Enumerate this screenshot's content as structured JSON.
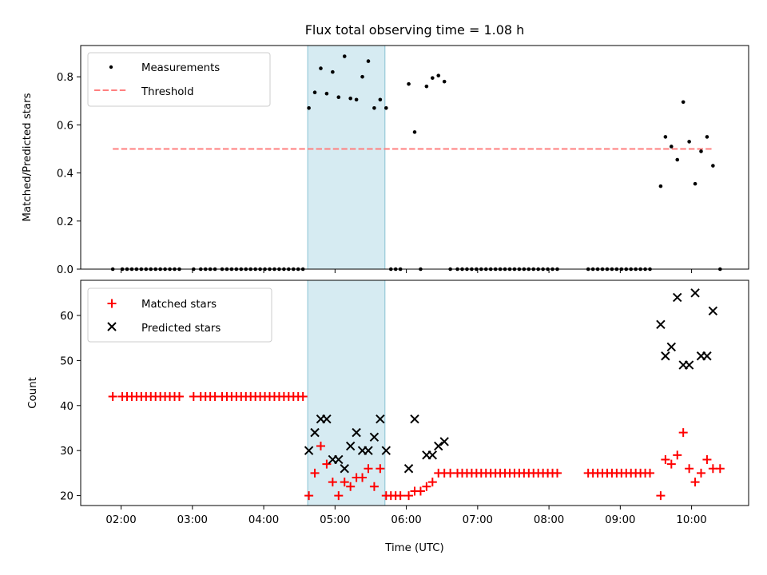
{
  "chart_data": [
    {
      "type": "scatter",
      "title": "Flux total observing time = 1.08 h",
      "ylabel": "Matched/Predicted stars",
      "xlabel": "",
      "xlim": [
        "01:26",
        "10:48"
      ],
      "ylim": [
        0,
        0.93
      ],
      "x_ticks": [
        "02:00",
        "03:00",
        "04:00",
        "05:00",
        "06:00",
        "07:00",
        "08:00",
        "09:00",
        "10:00"
      ],
      "y_ticks": [
        "0.0",
        "0.2",
        "0.4",
        "0.6",
        "0.8"
      ],
      "x_tick_labels_visible": false,
      "highlight_span": [
        "04:37",
        "05:42"
      ],
      "legend": {
        "placement": "upper-left",
        "entries": [
          "Measurements",
          "Threshold"
        ]
      },
      "series": [
        {
          "name": "Measurements",
          "marker": "dot",
          "color": "#000000",
          "points": [
            [
              "01:53",
              0
            ],
            [
              "02:01",
              0
            ],
            [
              "02:05",
              0
            ],
            [
              "02:09",
              0
            ],
            [
              "02:13",
              0
            ],
            [
              "02:17",
              0
            ],
            [
              "02:21",
              0
            ],
            [
              "02:25",
              0
            ],
            [
              "02:29",
              0
            ],
            [
              "02:33",
              0
            ],
            [
              "02:37",
              0
            ],
            [
              "02:41",
              0
            ],
            [
              "02:45",
              0
            ],
            [
              "02:49",
              0
            ],
            [
              "03:01",
              0
            ],
            [
              "03:07",
              0
            ],
            [
              "03:11",
              0
            ],
            [
              "03:15",
              0
            ],
            [
              "03:19",
              0
            ],
            [
              "03:25",
              0
            ],
            [
              "03:29",
              0
            ],
            [
              "03:33",
              0
            ],
            [
              "03:37",
              0
            ],
            [
              "03:41",
              0
            ],
            [
              "03:45",
              0
            ],
            [
              "03:49",
              0
            ],
            [
              "03:53",
              0
            ],
            [
              "03:57",
              0
            ],
            [
              "04:01",
              0
            ],
            [
              "04:05",
              0
            ],
            [
              "04:09",
              0
            ],
            [
              "04:13",
              0
            ],
            [
              "04:17",
              0
            ],
            [
              "04:21",
              0
            ],
            [
              "04:25",
              0
            ],
            [
              "04:29",
              0
            ],
            [
              "04:33",
              0
            ],
            [
              "04:38",
              0.67
            ],
            [
              "04:43",
              0.735
            ],
            [
              "04:48",
              0.835
            ],
            [
              "04:53",
              0.73
            ],
            [
              "04:58",
              0.82
            ],
            [
              "05:03",
              0.715
            ],
            [
              "05:08",
              0.885
            ],
            [
              "05:13",
              0.71
            ],
            [
              "05:18",
              0.705
            ],
            [
              "05:23",
              0.8
            ],
            [
              "05:28",
              0.865
            ],
            [
              "05:33",
              0.67
            ],
            [
              "05:38",
              0.705
            ],
            [
              "05:43",
              0.67
            ],
            [
              "05:47",
              0
            ],
            [
              "05:51",
              0
            ],
            [
              "05:55",
              0
            ],
            [
              "06:02",
              0.77
            ],
            [
              "06:07",
              0.57
            ],
            [
              "06:12",
              0
            ],
            [
              "06:17",
              0.76
            ],
            [
              "06:22",
              0.795
            ],
            [
              "06:27",
              0.805
            ],
            [
              "06:32",
              0.78
            ],
            [
              "06:37",
              0
            ],
            [
              "06:43",
              0
            ],
            [
              "06:47",
              0
            ],
            [
              "06:51",
              0
            ],
            [
              "06:55",
              0
            ],
            [
              "06:59",
              0
            ],
            [
              "07:03",
              0
            ],
            [
              "07:07",
              0
            ],
            [
              "07:11",
              0
            ],
            [
              "07:15",
              0
            ],
            [
              "07:19",
              0
            ],
            [
              "07:23",
              0
            ],
            [
              "07:27",
              0
            ],
            [
              "07:31",
              0
            ],
            [
              "07:35",
              0
            ],
            [
              "07:39",
              0
            ],
            [
              "07:43",
              0
            ],
            [
              "07:47",
              0
            ],
            [
              "07:51",
              0
            ],
            [
              "07:55",
              0
            ],
            [
              "07:59",
              0
            ],
            [
              "08:03",
              0
            ],
            [
              "08:07",
              0
            ],
            [
              "08:33",
              0
            ],
            [
              "08:37",
              0
            ],
            [
              "08:41",
              0
            ],
            [
              "08:45",
              0
            ],
            [
              "08:49",
              0
            ],
            [
              "08:53",
              0
            ],
            [
              "08:57",
              0
            ],
            [
              "09:01",
              0
            ],
            [
              "09:05",
              0
            ],
            [
              "09:09",
              0
            ],
            [
              "09:13",
              0
            ],
            [
              "09:17",
              0
            ],
            [
              "09:21",
              0
            ],
            [
              "09:25",
              0
            ],
            [
              "09:34",
              0.345
            ],
            [
              "09:38",
              0.55
            ],
            [
              "09:43",
              0.51
            ],
            [
              "09:48",
              0.455
            ],
            [
              "09:53",
              0.695
            ],
            [
              "09:58",
              0.53
            ],
            [
              "10:03",
              0.355
            ],
            [
              "10:08",
              0.49
            ],
            [
              "10:13",
              0.55
            ],
            [
              "10:18",
              0.43
            ],
            [
              "10:24",
              0
            ]
          ]
        },
        {
          "name": "Threshold",
          "style": "dashed",
          "color": "#ff7f7f",
          "x": [
            "01:53",
            "10:18"
          ],
          "y": [
            0.5,
            0.5
          ]
        }
      ]
    },
    {
      "type": "scatter",
      "title": "",
      "ylabel": "Count",
      "xlabel": "Time (UTC)",
      "xlim": [
        "01:26",
        "10:48"
      ],
      "ylim": [
        17.8,
        67.8
      ],
      "x_ticks": [
        "02:00",
        "03:00",
        "04:00",
        "05:00",
        "06:00",
        "07:00",
        "08:00",
        "09:00",
        "10:00"
      ],
      "y_ticks": [
        "20",
        "30",
        "40",
        "50",
        "60"
      ],
      "highlight_span": [
        "04:37",
        "05:42"
      ],
      "legend": {
        "placement": "upper-left",
        "entries": [
          "Matched stars",
          "Predicted stars"
        ]
      },
      "series": [
        {
          "name": "Matched stars",
          "marker": "plus",
          "color": "#ff0000",
          "points": [
            [
              "01:53",
              42
            ],
            [
              "02:01",
              42
            ],
            [
              "02:05",
              42
            ],
            [
              "02:09",
              42
            ],
            [
              "02:13",
              42
            ],
            [
              "02:17",
              42
            ],
            [
              "02:21",
              42
            ],
            [
              "02:25",
              42
            ],
            [
              "02:29",
              42
            ],
            [
              "02:33",
              42
            ],
            [
              "02:37",
              42
            ],
            [
              "02:41",
              42
            ],
            [
              "02:45",
              42
            ],
            [
              "02:49",
              42
            ],
            [
              "03:01",
              42
            ],
            [
              "03:07",
              42
            ],
            [
              "03:11",
              42
            ],
            [
              "03:15",
              42
            ],
            [
              "03:19",
              42
            ],
            [
              "03:25",
              42
            ],
            [
              "03:29",
              42
            ],
            [
              "03:33",
              42
            ],
            [
              "03:37",
              42
            ],
            [
              "03:41",
              42
            ],
            [
              "03:45",
              42
            ],
            [
              "03:49",
              42
            ],
            [
              "03:53",
              42
            ],
            [
              "03:57",
              42
            ],
            [
              "04:01",
              42
            ],
            [
              "04:05",
              42
            ],
            [
              "04:09",
              42
            ],
            [
              "04:13",
              42
            ],
            [
              "04:17",
              42
            ],
            [
              "04:21",
              42
            ],
            [
              "04:25",
              42
            ],
            [
              "04:29",
              42
            ],
            [
              "04:33",
              42
            ],
            [
              "04:38",
              20
            ],
            [
              "04:43",
              25
            ],
            [
              "04:48",
              31
            ],
            [
              "04:53",
              27
            ],
            [
              "04:58",
              23
            ],
            [
              "05:03",
              20
            ],
            [
              "05:08",
              23
            ],
            [
              "05:13",
              22
            ],
            [
              "05:18",
              24
            ],
            [
              "05:23",
              24
            ],
            [
              "05:28",
              26
            ],
            [
              "05:33",
              22
            ],
            [
              "05:38",
              26
            ],
            [
              "05:43",
              20
            ],
            [
              "05:47",
              20
            ],
            [
              "05:51",
              20
            ],
            [
              "05:55",
              20
            ],
            [
              "06:02",
              20
            ],
            [
              "06:07",
              21
            ],
            [
              "06:12",
              21
            ],
            [
              "06:17",
              22
            ],
            [
              "06:22",
              23
            ],
            [
              "06:27",
              25
            ],
            [
              "06:32",
              25
            ],
            [
              "06:37",
              25
            ],
            [
              "06:43",
              25
            ],
            [
              "06:47",
              25
            ],
            [
              "06:51",
              25
            ],
            [
              "06:55",
              25
            ],
            [
              "06:59",
              25
            ],
            [
              "07:03",
              25
            ],
            [
              "07:07",
              25
            ],
            [
              "07:11",
              25
            ],
            [
              "07:15",
              25
            ],
            [
              "07:19",
              25
            ],
            [
              "07:23",
              25
            ],
            [
              "07:27",
              25
            ],
            [
              "07:31",
              25
            ],
            [
              "07:35",
              25
            ],
            [
              "07:39",
              25
            ],
            [
              "07:43",
              25
            ],
            [
              "07:47",
              25
            ],
            [
              "07:51",
              25
            ],
            [
              "07:55",
              25
            ],
            [
              "07:59",
              25
            ],
            [
              "08:03",
              25
            ],
            [
              "08:07",
              25
            ],
            [
              "08:33",
              25
            ],
            [
              "08:37",
              25
            ],
            [
              "08:41",
              25
            ],
            [
              "08:45",
              25
            ],
            [
              "08:49",
              25
            ],
            [
              "08:53",
              25
            ],
            [
              "08:57",
              25
            ],
            [
              "09:01",
              25
            ],
            [
              "09:05",
              25
            ],
            [
              "09:09",
              25
            ],
            [
              "09:13",
              25
            ],
            [
              "09:17",
              25
            ],
            [
              "09:21",
              25
            ],
            [
              "09:25",
              25
            ],
            [
              "09:34",
              20
            ],
            [
              "09:38",
              28
            ],
            [
              "09:43",
              27
            ],
            [
              "09:48",
              29
            ],
            [
              "09:53",
              34
            ],
            [
              "09:58",
              26
            ],
            [
              "10:03",
              23
            ],
            [
              "10:08",
              25
            ],
            [
              "10:13",
              28
            ],
            [
              "10:18",
              26
            ],
            [
              "10:24",
              26
            ]
          ]
        },
        {
          "name": "Predicted stars",
          "marker": "x",
          "color": "#000000",
          "points": [
            [
              "04:38",
              30
            ],
            [
              "04:43",
              34
            ],
            [
              "04:48",
              37
            ],
            [
              "04:53",
              37
            ],
            [
              "04:58",
              28
            ],
            [
              "05:03",
              28
            ],
            [
              "05:08",
              26
            ],
            [
              "05:13",
              31
            ],
            [
              "05:18",
              34
            ],
            [
              "05:23",
              30
            ],
            [
              "05:28",
              30
            ],
            [
              "05:33",
              33
            ],
            [
              "05:38",
              37
            ],
            [
              "05:43",
              30
            ],
            [
              "06:02",
              26
            ],
            [
              "06:07",
              37
            ],
            [
              "06:17",
              29
            ],
            [
              "06:22",
              29
            ],
            [
              "06:27",
              31
            ],
            [
              "06:32",
              32
            ],
            [
              "09:34",
              58
            ],
            [
              "09:38",
              51
            ],
            [
              "09:43",
              53
            ],
            [
              "09:48",
              64
            ],
            [
              "09:53",
              49
            ],
            [
              "09:58",
              49
            ],
            [
              "10:03",
              65
            ],
            [
              "10:08",
              51
            ],
            [
              "10:13",
              51
            ],
            [
              "10:18",
              61
            ]
          ]
        }
      ]
    }
  ]
}
